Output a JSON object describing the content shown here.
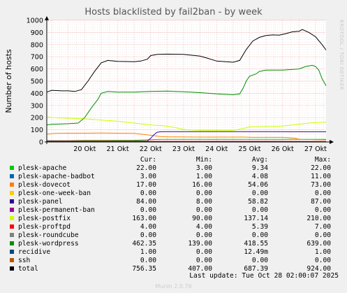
{
  "chart_data": {
    "type": "line",
    "title": "Hosts blacklisted by fail2ban - by week",
    "ylabel": "Number of hosts",
    "side_label": "RRDTOOL / TOBI OETIKER",
    "ylim": [
      0,
      1000
    ],
    "yticks": [
      0,
      100,
      200,
      300,
      400,
      500,
      600,
      700,
      800,
      900,
      1000
    ],
    "xticks": [
      "20 Okt",
      "21 Okt",
      "22 Okt",
      "23 Okt",
      "24 Okt",
      "25 Okt",
      "26 Okt",
      "27 Okt"
    ],
    "x_range_days": [
      19.35,
      27.82
    ],
    "grid": true,
    "series": [
      {
        "name": "plesk-apache",
        "color": "#00cc00",
        "points": [
          [
            19.35,
            10
          ],
          [
            20,
            10
          ],
          [
            20.5,
            12
          ],
          [
            21,
            12
          ],
          [
            22,
            14
          ],
          [
            22.8,
            22
          ],
          [
            23,
            22
          ],
          [
            24,
            22
          ],
          [
            25,
            22
          ],
          [
            26,
            22
          ],
          [
            27,
            22
          ],
          [
            27.82,
            22
          ]
        ]
      },
      {
        "name": "plesk-apache-badbot",
        "color": "#0066b3",
        "points": [
          [
            19.35,
            3
          ],
          [
            22,
            3
          ],
          [
            23,
            4
          ],
          [
            24,
            4
          ],
          [
            25,
            5
          ],
          [
            26,
            6
          ],
          [
            27,
            4
          ],
          [
            27.82,
            3
          ]
        ]
      },
      {
        "name": "plesk-dovecot",
        "color": "#ff8000",
        "points": [
          [
            19.35,
            65
          ],
          [
            19.6,
            70
          ],
          [
            20,
            72
          ],
          [
            20.5,
            72
          ],
          [
            21,
            73
          ],
          [
            21.5,
            72
          ],
          [
            22,
            70
          ],
          [
            22.5,
            55
          ],
          [
            22.8,
            45
          ],
          [
            23,
            42
          ],
          [
            24,
            40
          ],
          [
            25,
            40
          ],
          [
            25.3,
            40
          ],
          [
            25.6,
            38
          ],
          [
            26,
            38
          ],
          [
            26.5,
            38
          ],
          [
            26.9,
            30
          ],
          [
            27,
            22
          ],
          [
            27.3,
            20
          ],
          [
            27.82,
            17
          ]
        ]
      },
      {
        "name": "plesk-one-week-ban",
        "color": "#ffcc00",
        "points": [
          [
            19.35,
            0
          ],
          [
            27.82,
            0
          ]
        ]
      },
      {
        "name": "plesk-panel",
        "color": "#330099",
        "points": [
          [
            19.35,
            8
          ],
          [
            22.4,
            8
          ],
          [
            22.5,
            30
          ],
          [
            22.6,
            60
          ],
          [
            22.7,
            80
          ],
          [
            22.8,
            84
          ],
          [
            23,
            85
          ],
          [
            24,
            85
          ],
          [
            25,
            85
          ],
          [
            26,
            85
          ],
          [
            27,
            84
          ],
          [
            27.82,
            84
          ]
        ]
      },
      {
        "name": "plesk-permanent-ban",
        "color": "#990099",
        "points": [
          [
            19.35,
            0
          ],
          [
            27.82,
            0
          ]
        ]
      },
      {
        "name": "plesk-postfix",
        "color": "#ccff00",
        "points": [
          [
            19.35,
            205
          ],
          [
            19.6,
            200
          ],
          [
            20,
            195
          ],
          [
            20.5,
            190
          ],
          [
            21,
            180
          ],
          [
            21.5,
            170
          ],
          [
            22,
            155
          ],
          [
            22.5,
            140
          ],
          [
            23,
            130
          ],
          [
            23.3,
            115
          ],
          [
            23.6,
            100
          ],
          [
            24,
            95
          ],
          [
            24.5,
            95
          ],
          [
            25,
            95
          ],
          [
            25.3,
            110
          ],
          [
            25.5,
            125
          ],
          [
            26,
            128
          ],
          [
            26.5,
            130
          ],
          [
            26.8,
            140
          ],
          [
            27,
            145
          ],
          [
            27.3,
            155
          ],
          [
            27.5,
            160
          ],
          [
            27.82,
            163
          ]
        ]
      },
      {
        "name": "plesk-proftpd",
        "color": "#ff0000",
        "points": [
          [
            19.35,
            5
          ],
          [
            20,
            6
          ],
          [
            21,
            7
          ],
          [
            22,
            6
          ],
          [
            23,
            5
          ],
          [
            24,
            5
          ],
          [
            25,
            5
          ],
          [
            26,
            5
          ],
          [
            27,
            4
          ],
          [
            27.82,
            4
          ]
        ]
      },
      {
        "name": "plesk-roundcube",
        "color": "#808080",
        "points": [
          [
            19.35,
            0
          ],
          [
            27.82,
            0
          ]
        ]
      },
      {
        "name": "plesk-wordpress",
        "color": "#008f00",
        "points": [
          [
            19.35,
            140
          ],
          [
            19.5,
            145
          ],
          [
            19.8,
            148
          ],
          [
            20,
            150
          ],
          [
            20.3,
            155
          ],
          [
            20.5,
            200
          ],
          [
            20.7,
            280
          ],
          [
            20.9,
            350
          ],
          [
            21,
            400
          ],
          [
            21.2,
            415
          ],
          [
            21.5,
            410
          ],
          [
            22,
            410
          ],
          [
            22.5,
            415
          ],
          [
            23,
            418
          ],
          [
            23.5,
            412
          ],
          [
            24,
            405
          ],
          [
            24.5,
            395
          ],
          [
            25,
            388
          ],
          [
            25.2,
            395
          ],
          [
            25.3,
            440
          ],
          [
            25.4,
            500
          ],
          [
            25.5,
            540
          ],
          [
            25.7,
            560
          ],
          [
            25.8,
            580
          ],
          [
            26,
            590
          ],
          [
            26.5,
            590
          ],
          [
            27,
            600
          ],
          [
            27.2,
            620
          ],
          [
            27.4,
            630
          ],
          [
            27.5,
            620
          ],
          [
            27.6,
            590
          ],
          [
            27.7,
            520
          ],
          [
            27.82,
            462
          ]
        ]
      },
      {
        "name": "recidive",
        "color": "#00487d",
        "points": [
          [
            19.35,
            0
          ],
          [
            23.5,
            0
          ],
          [
            24.5,
            1
          ],
          [
            25.5,
            0
          ],
          [
            26.5,
            0
          ],
          [
            27.82,
            1
          ]
        ]
      },
      {
        "name": "ssh",
        "color": "#b35a00",
        "points": [
          [
            19.35,
            0
          ],
          [
            27.82,
            0
          ]
        ]
      },
      {
        "name": "total",
        "color": "#000000",
        "points": [
          [
            19.35,
            410
          ],
          [
            19.5,
            425
          ],
          [
            19.8,
            420
          ],
          [
            20,
            420
          ],
          [
            20.2,
            415
          ],
          [
            20.4,
            430
          ],
          [
            20.6,
            500
          ],
          [
            20.8,
            580
          ],
          [
            21,
            650
          ],
          [
            21.2,
            670
          ],
          [
            21.5,
            662
          ],
          [
            22,
            660
          ],
          [
            22.2,
            665
          ],
          [
            22.4,
            680
          ],
          [
            22.5,
            710
          ],
          [
            22.7,
            720
          ],
          [
            23,
            722
          ],
          [
            23.5,
            720
          ],
          [
            24,
            705
          ],
          [
            24.2,
            690
          ],
          [
            24.5,
            665
          ],
          [
            25,
            655
          ],
          [
            25.2,
            670
          ],
          [
            25.4,
            760
          ],
          [
            25.6,
            830
          ],
          [
            25.8,
            860
          ],
          [
            26,
            875
          ],
          [
            26.2,
            880
          ],
          [
            26.4,
            878
          ],
          [
            26.6,
            890
          ],
          [
            26.8,
            905
          ],
          [
            27,
            910
          ],
          [
            27.1,
            924
          ],
          [
            27.3,
            900
          ],
          [
            27.5,
            865
          ],
          [
            27.7,
            800
          ],
          [
            27.82,
            756
          ]
        ]
      }
    ]
  },
  "legend": {
    "headers": {
      "cur": "Cur:",
      "min": "Min:",
      "avg": "Avg:",
      "max": "Max:"
    },
    "rows": [
      {
        "name": "plesk-apache",
        "color": "#00cc00",
        "cur": "22.00",
        "min": "3.00",
        "avg": "9.34",
        "max": "22.00"
      },
      {
        "name": "plesk-apache-badbot",
        "color": "#0066b3",
        "cur": "3.00",
        "min": "1.00",
        "avg": "4.08",
        "max": "11.00"
      },
      {
        "name": "plesk-dovecot",
        "color": "#ff8000",
        "cur": "17.00",
        "min": "16.00",
        "avg": "54.06",
        "max": "73.00"
      },
      {
        "name": "plesk-one-week-ban",
        "color": "#ffcc00",
        "cur": "0.00",
        "min": "0.00",
        "avg": "0.00",
        "max": "0.00"
      },
      {
        "name": "plesk-panel",
        "color": "#330099",
        "cur": "84.00",
        "min": "8.00",
        "avg": "58.82",
        "max": "87.00"
      },
      {
        "name": "plesk-permanent-ban",
        "color": "#990099",
        "cur": "0.00",
        "min": "0.00",
        "avg": "0.00",
        "max": "0.00"
      },
      {
        "name": "plesk-postfix",
        "color": "#ccff00",
        "cur": "163.00",
        "min": "90.00",
        "avg": "137.14",
        "max": "210.00"
      },
      {
        "name": "plesk-proftpd",
        "color": "#ff0000",
        "cur": "4.00",
        "min": "4.00",
        "avg": "5.39",
        "max": "7.00"
      },
      {
        "name": "plesk-roundcube",
        "color": "#808080",
        "cur": "0.00",
        "min": "0.00",
        "avg": "0.00",
        "max": "0.00"
      },
      {
        "name": "plesk-wordpress",
        "color": "#008f00",
        "cur": "462.35",
        "min": "139.00",
        "avg": "418.55",
        "max": "639.00"
      },
      {
        "name": "recidive",
        "color": "#00487d",
        "cur": "1.00",
        "min": "0.00",
        "avg": "12.49m",
        "max": "1.00"
      },
      {
        "name": "ssh",
        "color": "#b35a00",
        "cur": "0.00",
        "min": "0.00",
        "avg": "0.00",
        "max": "0.00"
      },
      {
        "name": "total",
        "color": "#000000",
        "cur": "756.35",
        "min": "407.00",
        "avg": "687.39",
        "max": "924.00"
      }
    ]
  },
  "last_update": "Last update:  Tue Oct 28 02:00:07 2025",
  "footer": "Munin 2.0.76"
}
